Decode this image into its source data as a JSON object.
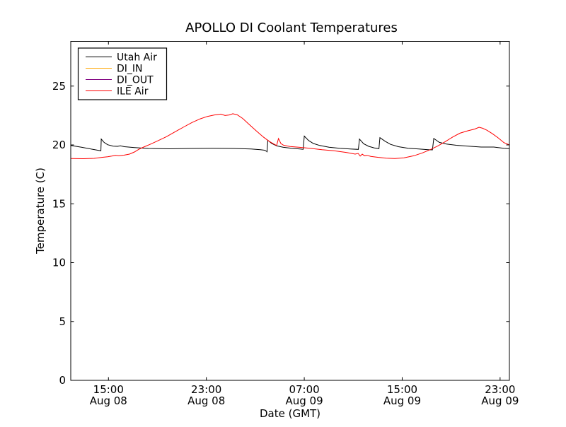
{
  "figure": {
    "background": "#ffffff",
    "axis_color": "#000000"
  },
  "chart_data": {
    "type": "line",
    "title": "APOLLO DI Coolant Temperatures",
    "xlabel": "Date (GMT)",
    "ylabel": "Temperature (C)",
    "grid": false,
    "legend_position": "upper left",
    "xlim_hours": [
      11.92,
      47.76
    ],
    "ylim": [
      0,
      28.8
    ],
    "y_ticks": [
      0,
      5,
      10,
      15,
      20,
      25
    ],
    "x_ticks": [
      {
        "hour": 15,
        "time": "15:00",
        "date": "Aug 08"
      },
      {
        "hour": 23,
        "time": "23:00",
        "date": "Aug 08"
      },
      {
        "hour": 31,
        "time": "07:00",
        "date": "Aug 09"
      },
      {
        "hour": 39,
        "time": "15:00",
        "date": "Aug 09"
      },
      {
        "hour": 47,
        "time": "23:00",
        "date": "Aug 09"
      }
    ],
    "series": [
      {
        "name": "Utah Air",
        "color": "#000000",
        "points": [
          [
            11.92,
            19.95
          ],
          [
            12.79,
            19.8
          ],
          [
            14.12,
            19.55
          ],
          [
            14.38,
            19.5
          ],
          [
            14.41,
            20.5
          ],
          [
            14.64,
            20.22
          ],
          [
            14.93,
            20.02
          ],
          [
            15.39,
            19.9
          ],
          [
            15.74,
            19.88
          ],
          [
            15.97,
            19.93
          ],
          [
            16.31,
            19.85
          ],
          [
            17.12,
            19.78
          ],
          [
            18.28,
            19.7
          ],
          [
            20.02,
            19.67
          ],
          [
            21.75,
            19.7
          ],
          [
            23.48,
            19.72
          ],
          [
            25.22,
            19.7
          ],
          [
            26.66,
            19.66
          ],
          [
            27.41,
            19.6
          ],
          [
            27.76,
            19.55
          ],
          [
            27.93,
            19.45
          ],
          [
            27.96,
            19.42
          ],
          [
            28.02,
            20.4
          ],
          [
            28.34,
            20.12
          ],
          [
            28.74,
            19.92
          ],
          [
            29.26,
            19.8
          ],
          [
            29.96,
            19.72
          ],
          [
            30.65,
            19.66
          ],
          [
            30.91,
            19.63
          ],
          [
            31.0,
            20.75
          ],
          [
            31.35,
            20.38
          ],
          [
            31.75,
            20.12
          ],
          [
            32.27,
            19.95
          ],
          [
            33.02,
            19.8
          ],
          [
            33.89,
            19.72
          ],
          [
            34.76,
            19.66
          ],
          [
            35.42,
            19.62
          ],
          [
            35.51,
            20.5
          ],
          [
            35.85,
            20.1
          ],
          [
            36.26,
            19.88
          ],
          [
            36.72,
            19.75
          ],
          [
            37.1,
            19.68
          ],
          [
            37.18,
            20.62
          ],
          [
            37.59,
            20.32
          ],
          [
            38.05,
            20.05
          ],
          [
            38.69,
            19.85
          ],
          [
            39.5,
            19.72
          ],
          [
            40.37,
            19.65
          ],
          [
            41.12,
            19.6
          ],
          [
            41.47,
            19.58
          ],
          [
            41.58,
            20.55
          ],
          [
            42.04,
            20.22
          ],
          [
            42.62,
            20.08
          ],
          [
            43.43,
            19.97
          ],
          [
            44.41,
            19.9
          ],
          [
            45.45,
            19.82
          ],
          [
            46.49,
            19.82
          ],
          [
            47.3,
            19.72
          ],
          [
            47.76,
            19.68
          ]
        ]
      },
      {
        "name": "DI_IN",
        "color": "#ffa500",
        "points": [
          [
            11.92,
            0
          ],
          [
            47.76,
            0
          ]
        ]
      },
      {
        "name": "DI_OUT",
        "color": "#800080",
        "points": [
          [
            11.92,
            0
          ],
          [
            47.76,
            0
          ]
        ]
      },
      {
        "name": "ILE Air",
        "color": "#ff0000",
        "points": [
          [
            11.92,
            18.85
          ],
          [
            12.96,
            18.83
          ],
          [
            13.83,
            18.86
          ],
          [
            14.52,
            18.95
          ],
          [
            14.93,
            19.0
          ],
          [
            15.27,
            19.05
          ],
          [
            15.56,
            19.12
          ],
          [
            15.85,
            19.08
          ],
          [
            16.26,
            19.13
          ],
          [
            16.72,
            19.22
          ],
          [
            17.12,
            19.4
          ],
          [
            17.47,
            19.62
          ],
          [
            17.88,
            19.82
          ],
          [
            18.4,
            20.05
          ],
          [
            19.03,
            20.35
          ],
          [
            19.73,
            20.7
          ],
          [
            20.42,
            21.1
          ],
          [
            21.11,
            21.5
          ],
          [
            21.81,
            21.9
          ],
          [
            22.5,
            22.22
          ],
          [
            23.08,
            22.42
          ],
          [
            23.66,
            22.55
          ],
          [
            24.18,
            22.62
          ],
          [
            24.53,
            22.5
          ],
          [
            24.87,
            22.55
          ],
          [
            25.16,
            22.65
          ],
          [
            25.51,
            22.57
          ],
          [
            25.97,
            22.25
          ],
          [
            26.49,
            21.75
          ],
          [
            27.07,
            21.2
          ],
          [
            27.65,
            20.68
          ],
          [
            28.11,
            20.32
          ],
          [
            28.51,
            20.08
          ],
          [
            28.74,
            19.95
          ],
          [
            28.89,
            20.55
          ],
          [
            29.09,
            20.12
          ],
          [
            29.32,
            19.97
          ],
          [
            29.84,
            19.86
          ],
          [
            30.54,
            19.8
          ],
          [
            31.46,
            19.72
          ],
          [
            32.44,
            19.6
          ],
          [
            33.43,
            19.5
          ],
          [
            34.47,
            19.35
          ],
          [
            35.16,
            19.22
          ],
          [
            35.4,
            19.28
          ],
          [
            35.57,
            19.05
          ],
          [
            35.74,
            19.22
          ],
          [
            35.91,
            19.08
          ],
          [
            36.14,
            19.12
          ],
          [
            36.43,
            19.03
          ],
          [
            37.01,
            18.95
          ],
          [
            37.7,
            18.88
          ],
          [
            38.4,
            18.85
          ],
          [
            39.15,
            18.9
          ],
          [
            39.96,
            19.08
          ],
          [
            40.65,
            19.32
          ],
          [
            41.29,
            19.6
          ],
          [
            41.93,
            19.92
          ],
          [
            42.51,
            20.28
          ],
          [
            43.14,
            20.68
          ],
          [
            43.72,
            21.0
          ],
          [
            44.36,
            21.2
          ],
          [
            44.94,
            21.35
          ],
          [
            45.28,
            21.5
          ],
          [
            45.57,
            21.42
          ],
          [
            45.92,
            21.25
          ],
          [
            46.38,
            20.95
          ],
          [
            46.84,
            20.6
          ],
          [
            47.31,
            20.2
          ],
          [
            47.76,
            20.0
          ]
        ]
      }
    ]
  }
}
